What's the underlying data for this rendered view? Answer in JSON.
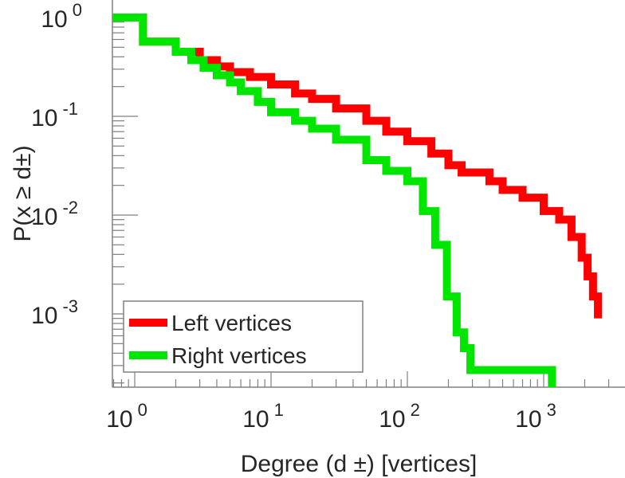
{
  "chart_data": {
    "type": "line",
    "step": true,
    "xlabel": "Degree (d ±) [vertices]",
    "ylabel": "P(x ≥ d±)",
    "xscale": "log",
    "yscale": "log",
    "xlim": [
      0.686,
      4000
    ],
    "ylim": [
      0.00018,
      1.5
    ],
    "xticks": [
      {
        "base": "10",
        "exp": "0",
        "v": 1
      },
      {
        "base": "10",
        "exp": "1",
        "v": 10
      },
      {
        "base": "10",
        "exp": "2",
        "v": 100
      },
      {
        "base": "10",
        "exp": "3",
        "v": 1000
      }
    ],
    "yticks": [
      {
        "base": "10",
        "exp": "0",
        "v": 1
      },
      {
        "base": "10",
        "exp": "-1",
        "v": 0.1
      },
      {
        "base": "10",
        "exp": "-2",
        "v": 0.01
      },
      {
        "base": "10",
        "exp": "-3",
        "v": 0.001
      }
    ],
    "legend_position": "bottom-left",
    "series": [
      {
        "name": "Left vertices",
        "color": "#ff0000",
        "x": [
          0.686,
          1.15,
          2,
          3,
          4,
          5,
          7,
          10,
          15,
          20,
          30,
          50,
          70,
          100,
          150,
          200,
          250,
          300,
          400,
          500,
          700,
          1000,
          1300,
          1600,
          1900,
          2100,
          2300,
          2500
        ],
        "y": [
          1,
          0.57,
          0.45,
          0.37,
          0.32,
          0.28,
          0.25,
          0.21,
          0.17,
          0.15,
          0.12,
          0.09,
          0.07,
          0.056,
          0.042,
          0.032,
          0.027,
          0.027,
          0.022,
          0.018,
          0.015,
          0.011,
          0.009,
          0.006,
          0.0037,
          0.0024,
          0.0015,
          0.0009
        ]
      },
      {
        "name": "Right vertices",
        "color": "#00e600",
        "x": [
          0.686,
          1.15,
          2,
          2.6,
          3.2,
          4,
          5,
          6,
          8,
          10,
          15,
          20,
          30,
          50,
          70,
          100,
          130,
          160,
          195,
          230,
          260,
          290,
          1150
        ],
        "y": [
          1,
          0.57,
          0.45,
          0.37,
          0.31,
          0.26,
          0.22,
          0.18,
          0.14,
          0.11,
          0.09,
          0.075,
          0.058,
          0.036,
          0.028,
          0.022,
          0.011,
          0.005,
          0.0015,
          0.00065,
          0.00045,
          0.00027,
          0.00027
        ]
      }
    ]
  }
}
